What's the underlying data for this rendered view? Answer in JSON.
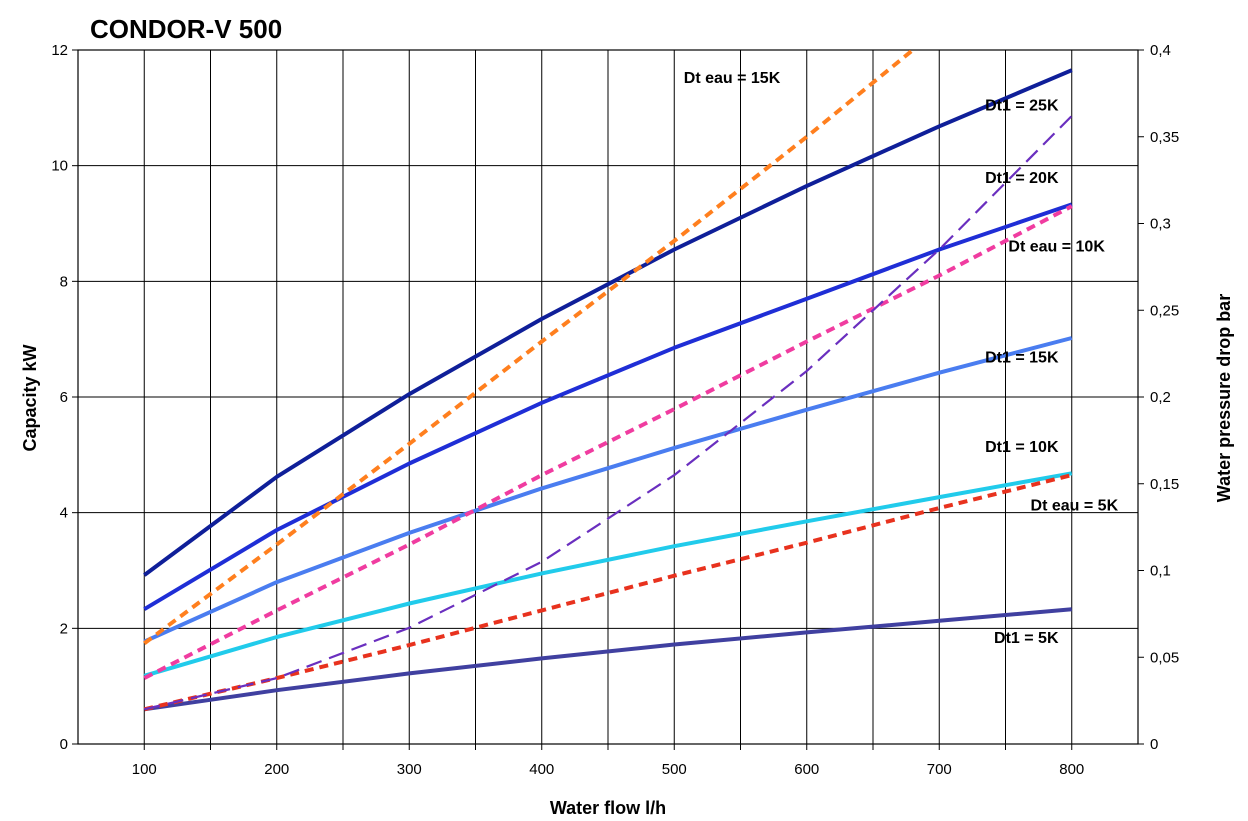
{
  "chart_data": {
    "type": "line",
    "title": "CONDOR-V 500",
    "xlabel": "Water flow   l/h",
    "ylabel": "Capacity   kW",
    "y2label": "Water pressure drop   bar",
    "xlim": [
      50,
      850
    ],
    "ylim": [
      0,
      12
    ],
    "y2lim": [
      0,
      0.4
    ],
    "x_ticks": [
      "100",
      "200",
      "300",
      "400",
      "500",
      "600",
      "700",
      "800"
    ],
    "y_ticks": [
      "0",
      "2",
      "4",
      "6",
      "8",
      "10",
      "12"
    ],
    "y2_ticks": [
      "0",
      "0,05",
      "0,1",
      "0,15",
      "0,2",
      "0,25",
      "0,3",
      "0,35",
      "0,4"
    ],
    "grid": true,
    "legend": "none",
    "series": [
      {
        "name": "Dt1 = 25K",
        "axis": "left",
        "style": "solid",
        "color": "#0f1f99",
        "x": [
          100,
          200,
          300,
          400,
          500,
          600,
          700,
          800
        ],
        "values": [
          2.92,
          4.62,
          6.05,
          7.35,
          8.55,
          9.65,
          10.68,
          11.65
        ]
      },
      {
        "name": "Dt1 = 20K",
        "axis": "left",
        "style": "solid",
        "color": "#1f2ed6",
        "x": [
          100,
          200,
          300,
          400,
          500,
          600,
          700,
          800
        ],
        "values": [
          2.33,
          3.7,
          4.85,
          5.9,
          6.85,
          7.7,
          8.55,
          9.33
        ]
      },
      {
        "name": "Dt1 = 15K",
        "axis": "left",
        "style": "solid",
        "color": "#4a7df0",
        "x": [
          100,
          200,
          300,
          400,
          500,
          600,
          700,
          800
        ],
        "values": [
          1.77,
          2.8,
          3.65,
          4.42,
          5.12,
          5.78,
          6.42,
          7.02
        ]
      },
      {
        "name": "Dt1 = 10K",
        "axis": "left",
        "style": "solid",
        "color": "#21cbeb",
        "x": [
          100,
          200,
          300,
          400,
          500,
          600,
          700,
          800
        ],
        "values": [
          1.18,
          1.85,
          2.43,
          2.95,
          3.42,
          3.85,
          4.27,
          4.68
        ]
      },
      {
        "name": "Dt1 = 5K",
        "axis": "left",
        "style": "solid",
        "color": "#4040a0",
        "x": [
          100,
          200,
          300,
          400,
          500,
          600,
          700,
          800
        ],
        "values": [
          0.6,
          0.93,
          1.22,
          1.48,
          1.72,
          1.93,
          2.13,
          2.33
        ]
      },
      {
        "name": "Dt eau = 15K",
        "axis": "right",
        "style": "dotted",
        "color": "#ff7f1e",
        "x": [
          100,
          200,
          300,
          400,
          500,
          600,
          680
        ],
        "values": [
          0.058,
          0.115,
          0.173,
          0.232,
          0.29,
          0.35,
          0.4
        ]
      },
      {
        "name": "Dt eau = 10K",
        "axis": "right",
        "style": "dotted",
        "color": "#f03ca0",
        "x": [
          100,
          200,
          300,
          400,
          500,
          600,
          700,
          800
        ],
        "values": [
          0.038,
          0.077,
          0.115,
          0.155,
          0.193,
          0.232,
          0.27,
          0.31
        ]
      },
      {
        "name": "Dt eau = 5K",
        "axis": "right",
        "style": "dotted",
        "color": "#e8321e",
        "x": [
          100,
          200,
          300,
          400,
          500,
          600,
          700,
          800
        ],
        "values": [
          0.02,
          0.038,
          0.057,
          0.077,
          0.097,
          0.116,
          0.136,
          0.155
        ]
      },
      {
        "name": "",
        "axis": "right",
        "style": "dashed",
        "color": "#6a2fbf",
        "x": [
          100,
          200,
          300,
          400,
          500,
          600,
          700,
          800
        ],
        "values": [
          0.02,
          0.038,
          0.067,
          0.105,
          0.155,
          0.215,
          0.285,
          0.362
        ]
      }
    ],
    "annotations": [
      {
        "text": "Dt eau = 15K",
        "x": 580,
        "y": 11.43,
        "axis": "left"
      },
      {
        "text": "Dt1 = 25K",
        "x": 790,
        "y": 10.95,
        "axis": "left"
      },
      {
        "text": "Dt1 = 20K",
        "x": 790,
        "y": 9.7,
        "axis": "left"
      },
      {
        "text": "Dt eau = 10K",
        "x": 825,
        "y": 8.52,
        "axis": "left"
      },
      {
        "text": "Dt1 = 15K",
        "x": 790,
        "y": 6.6,
        "axis": "left"
      },
      {
        "text": "Dt1 = 10K",
        "x": 790,
        "y": 5.05,
        "axis": "left"
      },
      {
        "text": "Dt eau = 5K",
        "x": 835,
        "y": 4.04,
        "axis": "left"
      },
      {
        "text": "Dt1 = 5K",
        "x": 790,
        "y": 1.75,
        "axis": "left"
      }
    ]
  }
}
